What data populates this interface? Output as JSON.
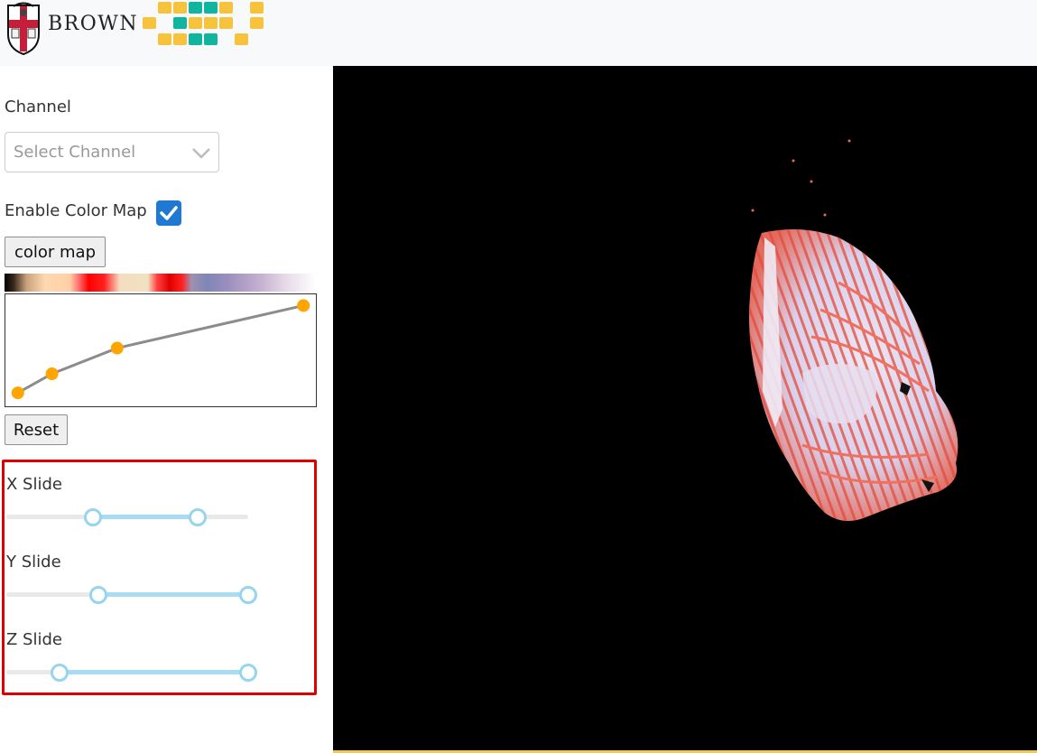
{
  "header": {
    "brand_text": "BROWN",
    "colors": {
      "brand_red": "#c41e3a",
      "pixel_yellow": "#f7c33c",
      "pixel_teal": "#10b5a0"
    }
  },
  "sidebar": {
    "channel": {
      "label": "Channel",
      "placeholder": "Select Channel"
    },
    "color_map": {
      "enable_label": "Enable Color Map",
      "enabled": true,
      "button_label": "color map"
    },
    "transfer_function": {
      "points": [
        {
          "x": 0.04,
          "y": 0.12
        },
        {
          "x": 0.15,
          "y": 0.29
        },
        {
          "x": 0.36,
          "y": 0.52
        },
        {
          "x": 0.96,
          "y": 0.9
        }
      ],
      "reset_label": "Reset"
    },
    "sliders": [
      {
        "label": "X Slide",
        "min": 0.36,
        "max": 0.79
      },
      {
        "label": "Y Slide",
        "min": 0.38,
        "max": 1.0
      },
      {
        "label": "Z Slide",
        "min": 0.22,
        "max": 1.0
      }
    ],
    "colors": {
      "accent": "#1f78d1",
      "highlight_border": "#e00000",
      "slider_fill": "#a8dcf2",
      "curve_point": "#ffa500"
    }
  },
  "viewer": {
    "background": "#000000"
  }
}
